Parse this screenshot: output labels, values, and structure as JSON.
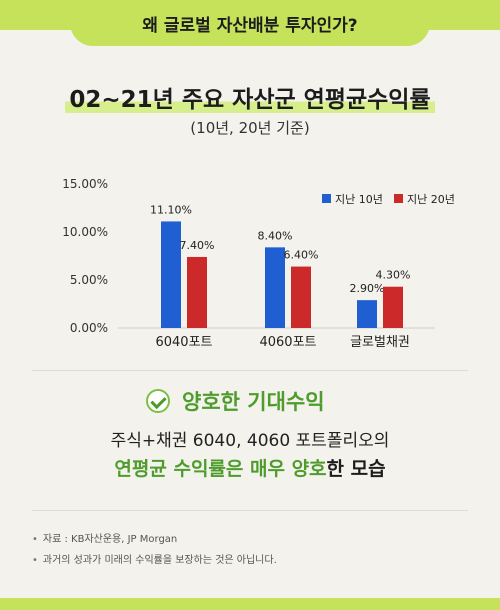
{
  "header": {
    "question": "왜 글로벌 자산배분 투자인가?"
  },
  "title": "02~21년 주요 자산군 연평균수익률",
  "subtitle": "(10년, 20년 기준)",
  "colors": {
    "accent_green": "#c6e25a",
    "series_10y": "#1f5fd1",
    "series_20y": "#cc2a2a",
    "highlight_text": "#4e9c2c"
  },
  "chart_data": {
    "type": "bar",
    "categories": [
      "6040포트",
      "4060포트",
      "글로벌채권"
    ],
    "series": [
      {
        "name": "지난 10년",
        "values": [
          11.1,
          8.4,
          2.9
        ],
        "labels": [
          "11.10%",
          "8.40%",
          "2.90%"
        ],
        "color": "#1f5fd1"
      },
      {
        "name": "지난 20년",
        "values": [
          7.4,
          6.4,
          4.3
        ],
        "labels": [
          "7.40%",
          "6.40%",
          "4.30%"
        ],
        "color": "#cc2a2a"
      }
    ],
    "ylim": [
      0,
      15
    ],
    "yticks": [
      0,
      5,
      10,
      15
    ],
    "ytick_labels": [
      "0.00%",
      "5.00%",
      "10.00%",
      "15.00%"
    ],
    "legend_position": "top-right",
    "grid": false
  },
  "summary": {
    "heading": "양호한 기대수익",
    "line1": "주식+채권 6040, 4060 포트폴리오의",
    "line2_part1": "연평균 수익률은 매우 양호",
    "line2_part2": "한 모습"
  },
  "notes": [
    "자료 : KB자산운용, JP Morgan",
    "과거의 성과가 미래의 수익률을 보장하는 것은 아닙니다."
  ]
}
